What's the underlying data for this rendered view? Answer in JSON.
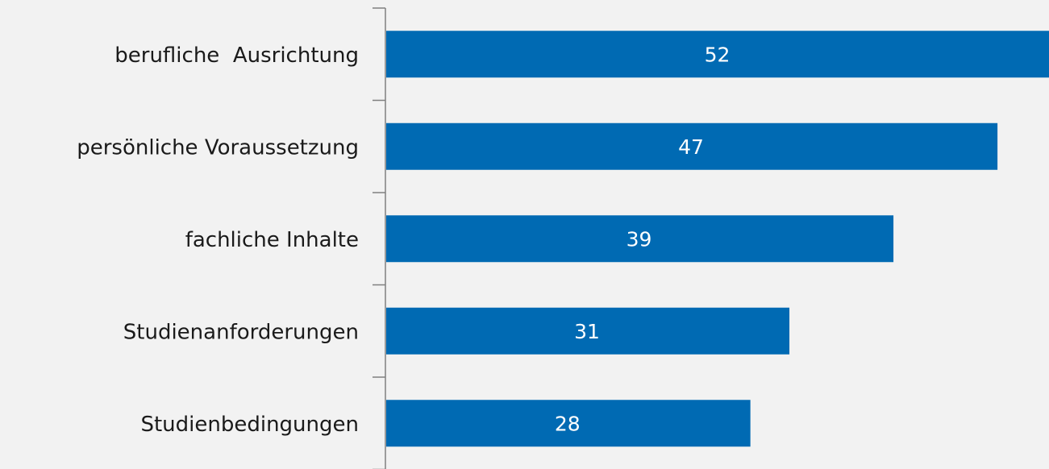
{
  "chart_data": {
    "type": "bar",
    "orientation": "horizontal",
    "categories": [
      "berufliche  Ausrichtung",
      "persönliche Voraussetzung",
      "fachliche Inhalte",
      "Studienanforderungen",
      "Studienbedingungen"
    ],
    "values": [
      52,
      47,
      39,
      31,
      28
    ],
    "color": "#006ab3"
  }
}
